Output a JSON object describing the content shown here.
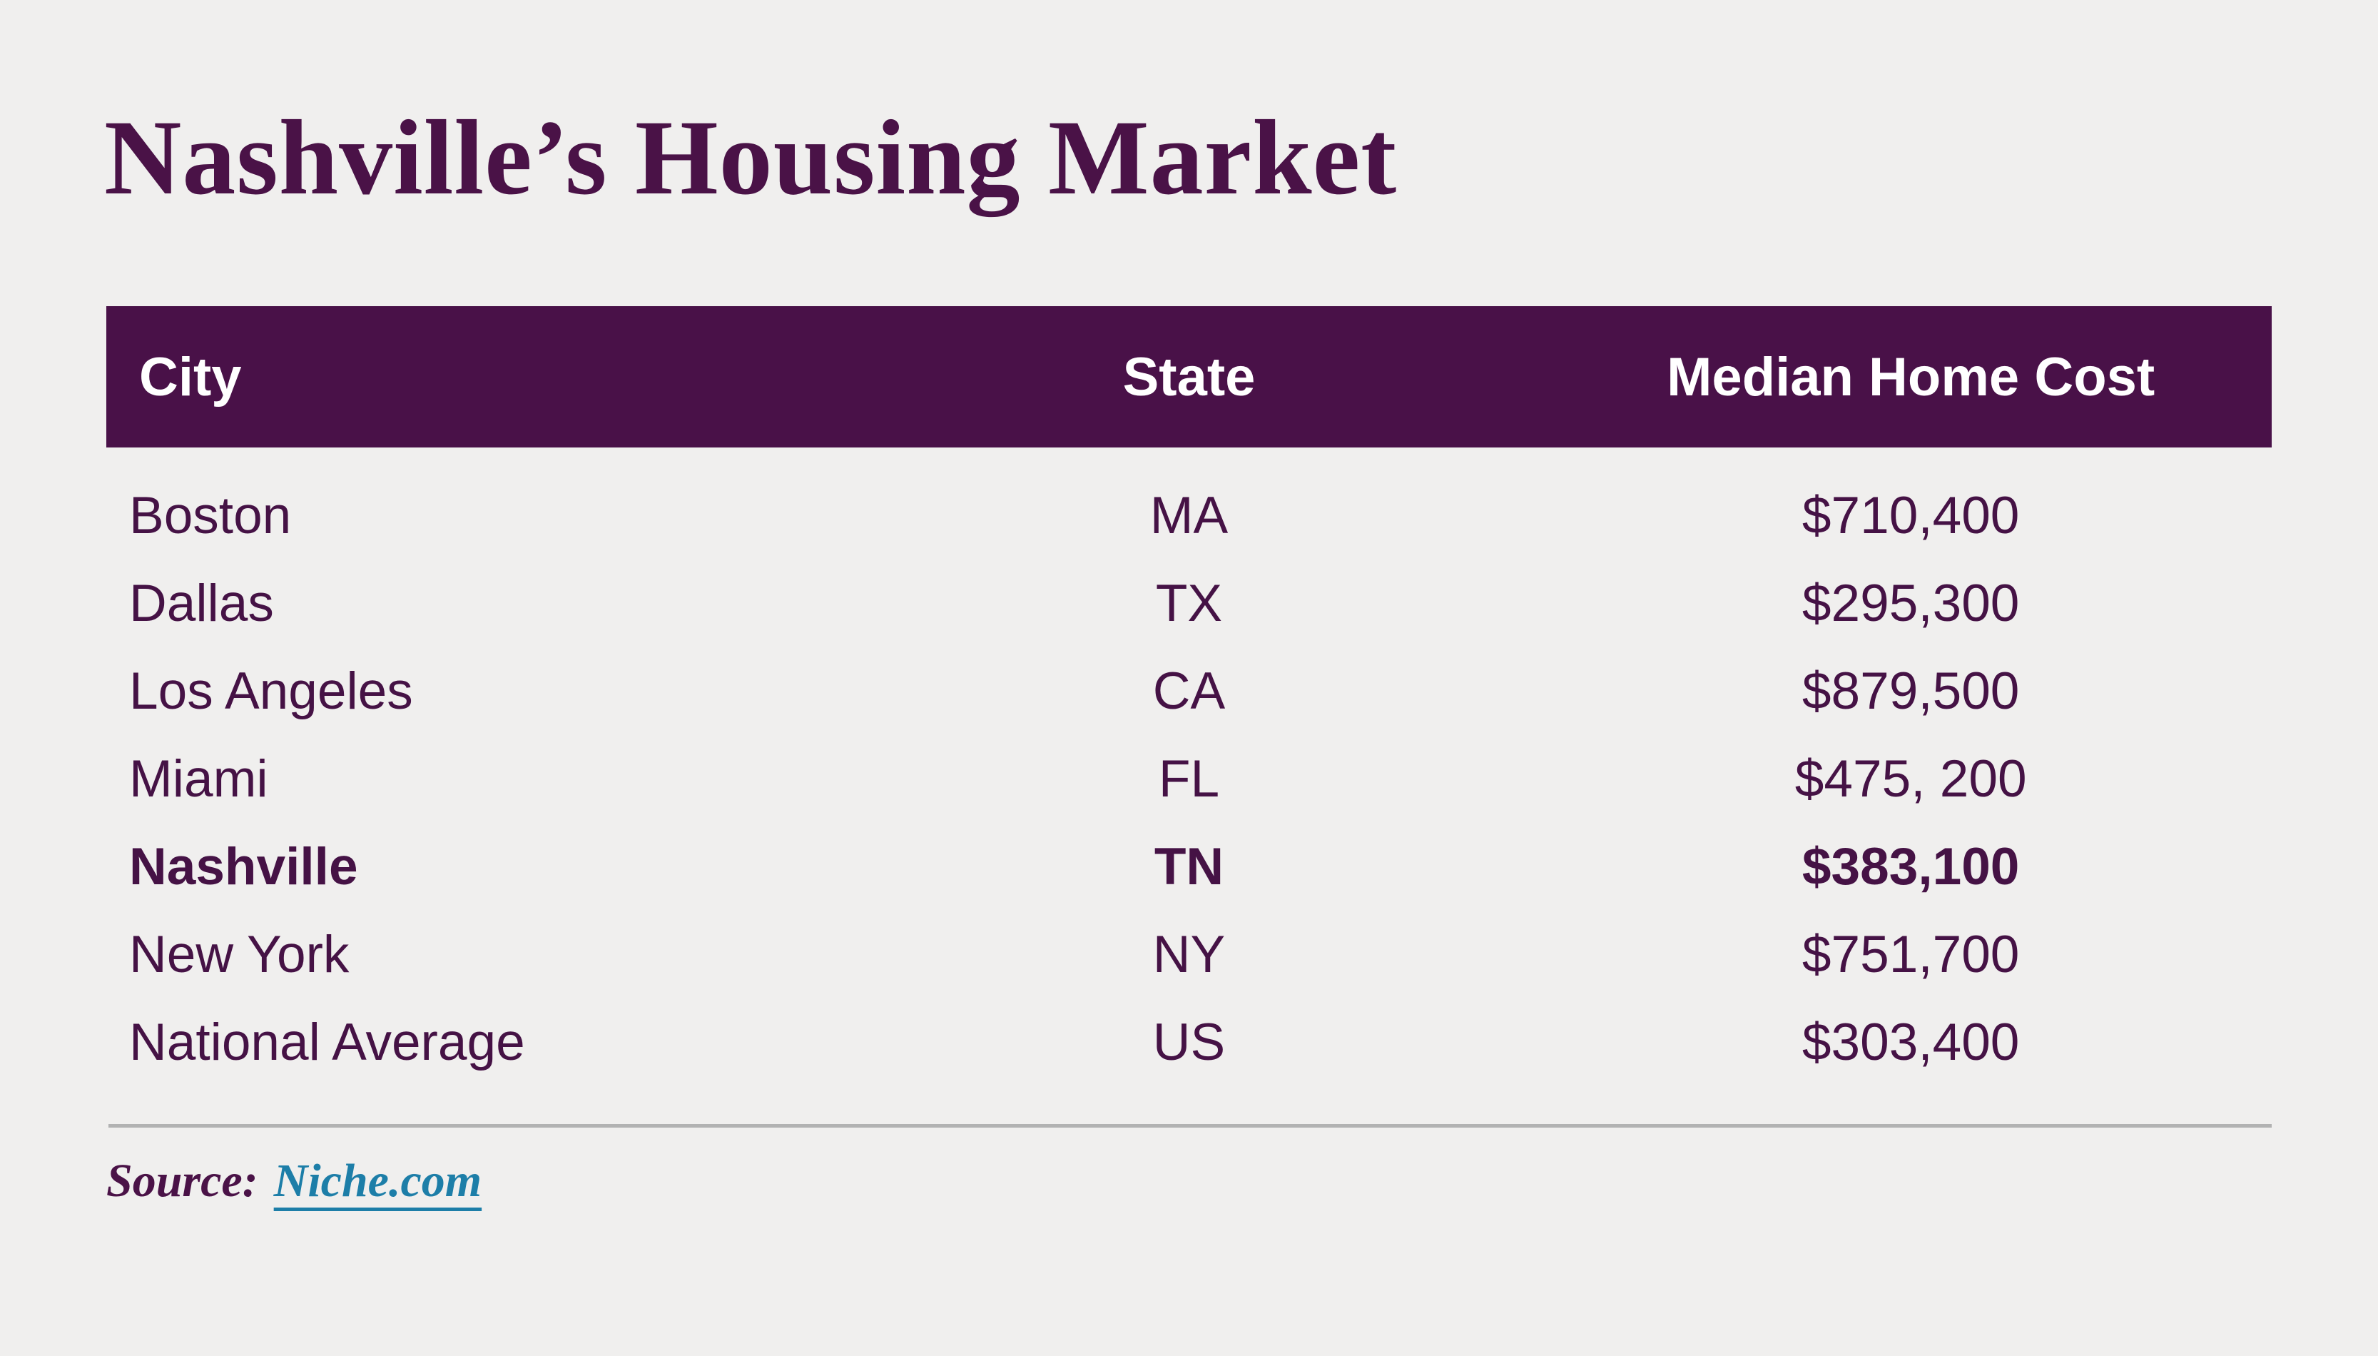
{
  "title": "Nashville’s Housing Market",
  "source": {
    "label": "Source:",
    "link_text": "Niche.com"
  },
  "chart_data": {
    "type": "table",
    "title": "Nashville’s Housing Market",
    "columns": [
      "City",
      "State",
      "Median Home Cost"
    ],
    "rows": [
      {
        "city": "Boston",
        "state": "MA",
        "cost": "$710,400",
        "highlight": false
      },
      {
        "city": "Dallas",
        "state": "TX",
        "cost": "$295,300",
        "highlight": false
      },
      {
        "city": "Los Angeles",
        "state": "CA",
        "cost": "$879,500",
        "highlight": false
      },
      {
        "city": "Miami",
        "state": "FL",
        "cost": "$475, 200",
        "highlight": false
      },
      {
        "city": "Nashville",
        "state": "TN",
        "cost": "$383,100",
        "highlight": true
      },
      {
        "city": "New York",
        "state": "NY",
        "cost": "$751,700",
        "highlight": false
      },
      {
        "city": "National Average",
        "state": "US",
        "cost": "$303,400",
        "highlight": false
      }
    ],
    "layout_hints": {
      "city_align": "left",
      "state_align": "center",
      "cost_align": "center",
      "highlighted_row": "Nashville"
    },
    "source": "Niche.com"
  },
  "colors": {
    "background": "#f0efee",
    "header_bg": "#491148",
    "header_text": "#ffffff",
    "body_text": "#451245",
    "title_text": "#4a1247",
    "link": "#1d7ea8",
    "divider": "#b2b2b2"
  }
}
